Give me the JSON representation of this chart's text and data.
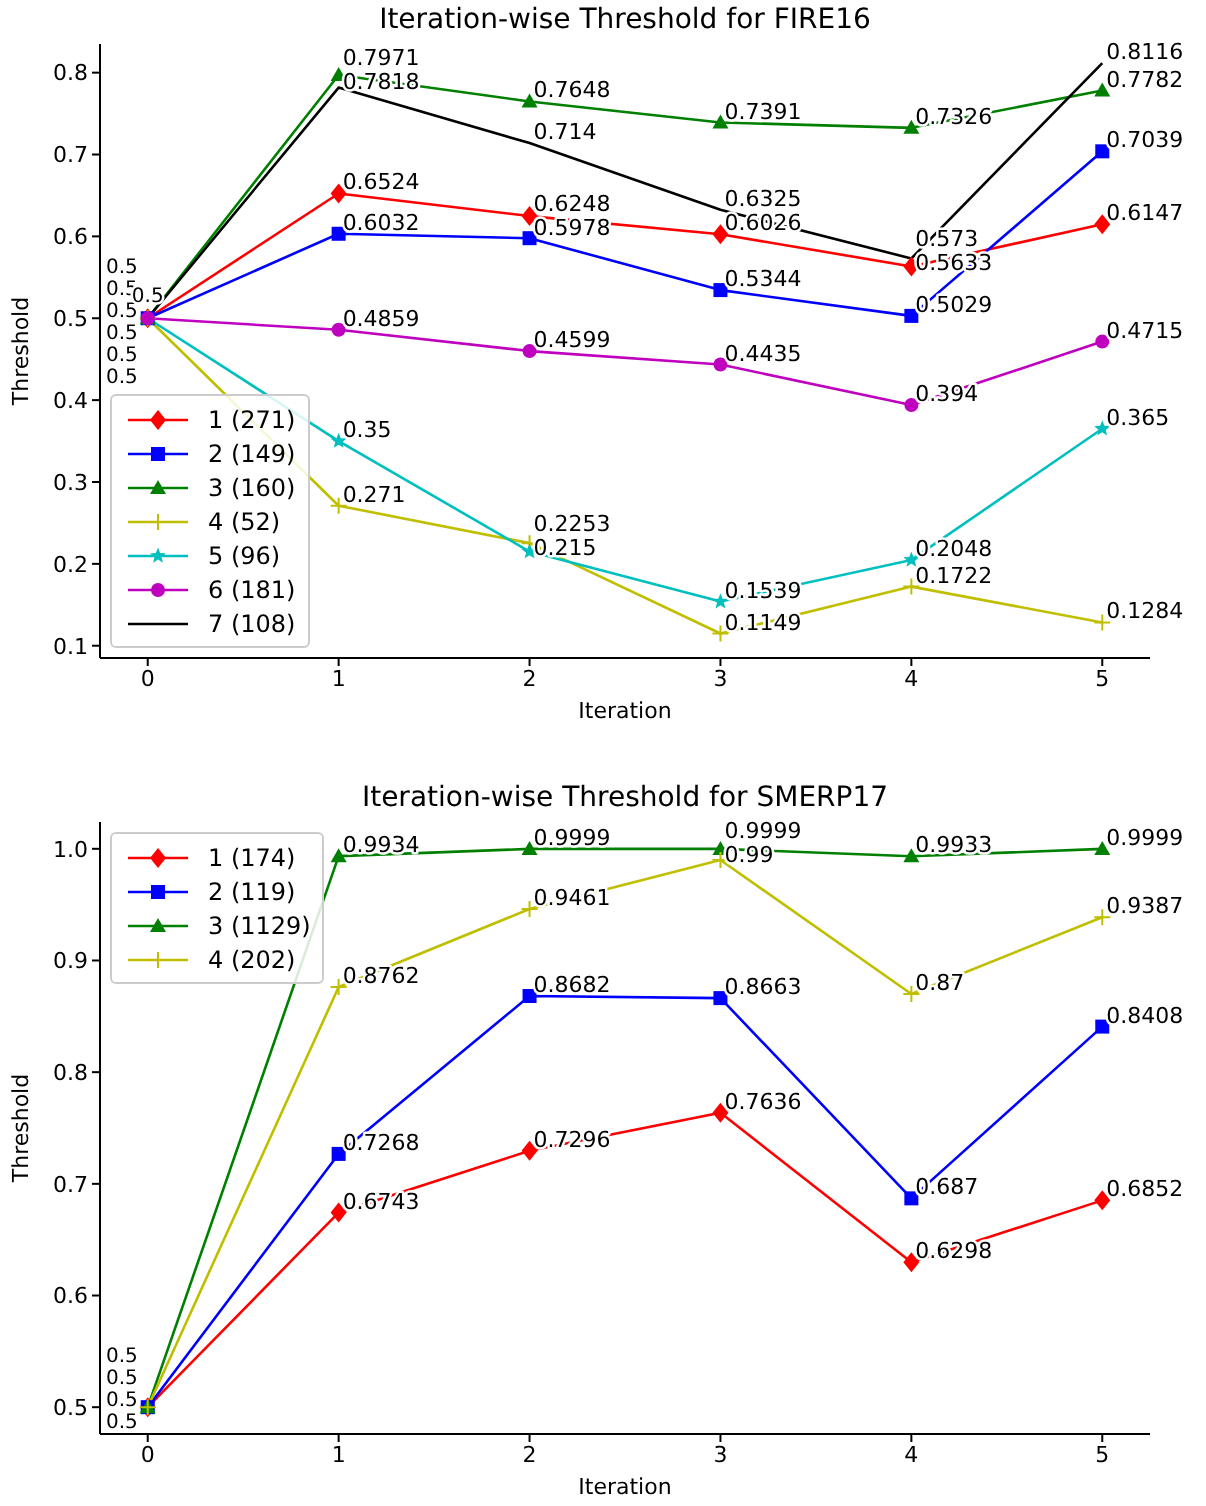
{
  "chart_data": [
    {
      "type": "line",
      "title": "Iteration-wise Threshold for FIRE16",
      "xlabel": "Iteration",
      "ylabel": "Threshold",
      "x": [
        0,
        1,
        2,
        3,
        4,
        5
      ],
      "xlim": [
        -0.25,
        5.25
      ],
      "xticks": [
        0,
        1,
        2,
        3,
        4,
        5
      ],
      "ylim": [
        0.085,
        0.835
      ],
      "yticks": [
        0.1,
        0.2,
        0.3,
        0.4,
        0.5,
        0.6,
        0.7,
        0.8
      ],
      "grid": false,
      "legend": "bottom left",
      "data_labels": true,
      "line_style": "solid",
      "series": [
        {
          "name": "1 (271)",
          "color": "#ff0000",
          "marker": "diamond",
          "values": [
            0.5,
            0.6524,
            0.6248,
            0.6026,
            0.5633,
            0.6147
          ]
        },
        {
          "name": "2 (149)",
          "color": "#0000ff",
          "marker": "square",
          "values": [
            0.5,
            0.6032,
            0.5978,
            0.5344,
            0.5029,
            0.7039
          ]
        },
        {
          "name": "3 (160)",
          "color": "#008000",
          "marker": "triangle",
          "values": [
            0.5,
            0.7971,
            0.7648,
            0.7391,
            0.7326,
            0.7782
          ]
        },
        {
          "name": "4 (52)",
          "color": "#bfbf00",
          "marker": "cross",
          "values": [
            0.5,
            0.271,
            0.2253,
            0.1149,
            0.1722,
            0.1284
          ]
        },
        {
          "name": "5 (96)",
          "color": "#00bfbf",
          "marker": "star",
          "values": [
            0.5,
            0.35,
            0.215,
            0.1539,
            0.2048,
            0.365
          ]
        },
        {
          "name": "6 (181)",
          "color": "#bf00bf",
          "marker": "circle",
          "values": [
            0.5,
            0.4859,
            0.4599,
            0.4435,
            0.394,
            0.4715
          ]
        },
        {
          "name": "7 (108)",
          "color": "#000000",
          "marker": "none",
          "values": [
            0.5,
            0.7818,
            0.714,
            0.6325,
            0.573,
            0.8116
          ]
        }
      ]
    },
    {
      "type": "line",
      "title": "Iteration-wise Threshold for SMERP17",
      "xlabel": "Iteration",
      "ylabel": "Threshold",
      "x": [
        0,
        1,
        2,
        3,
        4,
        5
      ],
      "xlim": [
        -0.25,
        5.25
      ],
      "xticks": [
        0,
        1,
        2,
        3,
        4,
        5
      ],
      "ylim": [
        0.476,
        1.024
      ],
      "yticks": [
        0.5,
        0.6,
        0.7,
        0.8,
        0.9,
        {
          "value": 1,
          "label": "1.0"
        }
      ],
      "grid": false,
      "legend": "top left",
      "data_labels": true,
      "line_style": "solid",
      "series": [
        {
          "name": "1 (174)",
          "color": "#ff0000",
          "marker": "diamond",
          "values": [
            0.5,
            0.6743,
            0.7296,
            0.7636,
            0.6298,
            0.6852
          ]
        },
        {
          "name": "2 (119)",
          "color": "#0000ff",
          "marker": "square",
          "values": [
            0.5,
            0.7268,
            0.8682,
            0.8663,
            0.687,
            0.8408
          ]
        },
        {
          "name": "3 (1129)",
          "color": "#008000",
          "marker": "triangle",
          "values": [
            0.5,
            0.9934,
            0.9999,
            0.9999,
            0.9933,
            0.9999
          ]
        },
        {
          "name": "4 (202)",
          "color": "#bfbf00",
          "marker": "cross",
          "values": [
            0.5,
            0.8762,
            0.9461,
            0.99,
            0.87,
            0.9387
          ]
        }
      ]
    }
  ]
}
